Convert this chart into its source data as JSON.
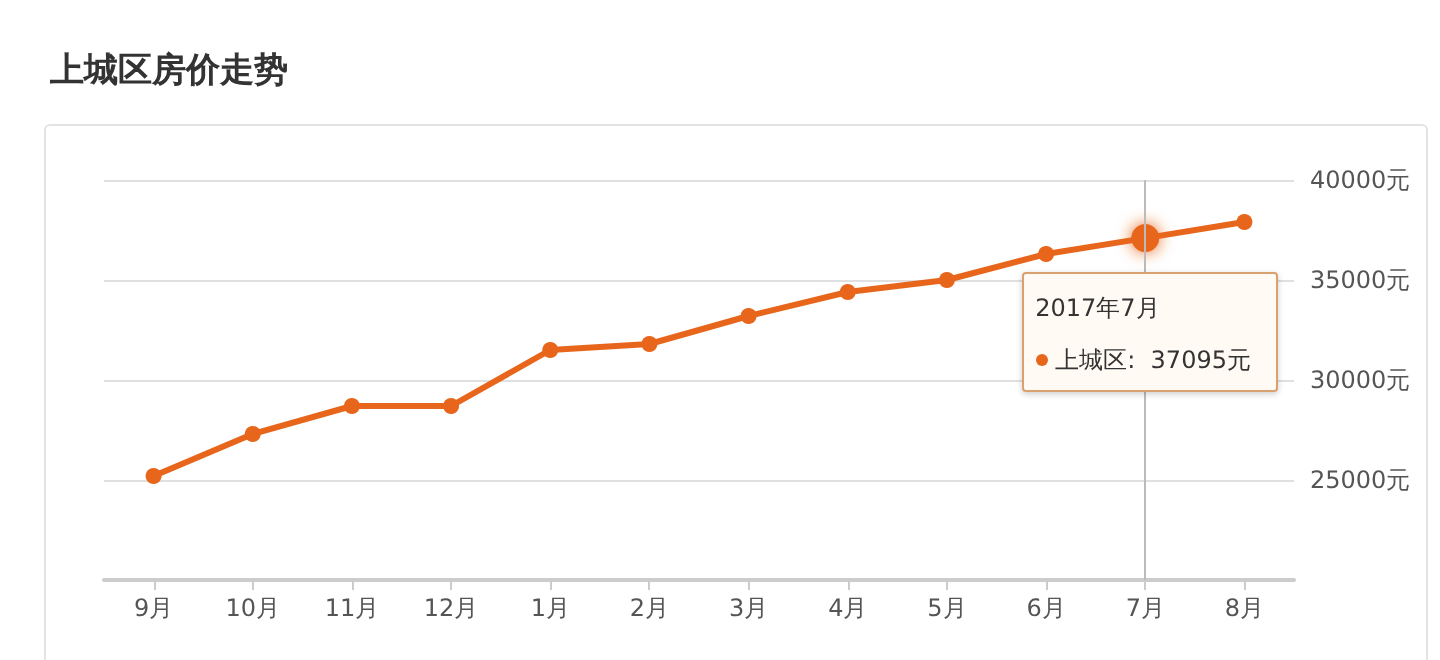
{
  "chart_data": {
    "type": "line",
    "title": "上城区房价走势",
    "categories": [
      "9月",
      "10月",
      "11月",
      "12月",
      "1月",
      "2月",
      "3月",
      "4月",
      "5月",
      "6月",
      "7月",
      "8月"
    ],
    "series": [
      {
        "color": "#e8661c",
        "values": [
          25200,
          27300,
          28700,
          28700,
          31500,
          31800,
          33200,
          34400,
          35000,
          36300,
          37095,
          37900
        ]
      }
    ],
    "ylim": [
      20000,
      40000
    ],
    "yticks": [
      {
        "value": 25000,
        "label": "25000元"
      },
      {
        "value": 30000,
        "label": "30000元"
      },
      {
        "value": 35000,
        "label": "35000元"
      },
      {
        "value": 40000,
        "label": "40000元"
      }
    ],
    "grid": "y",
    "marker": "circle",
    "line_style": "solid",
    "ref_lines": [
      {
        "axis": "x",
        "value": "7月",
        "color": "#bbbbbb"
      }
    ],
    "annotations": [
      {
        "text": "2017年7月",
        "x": "7月",
        "y": 37095
      },
      "上城区:  37095元"
    ]
  }
}
